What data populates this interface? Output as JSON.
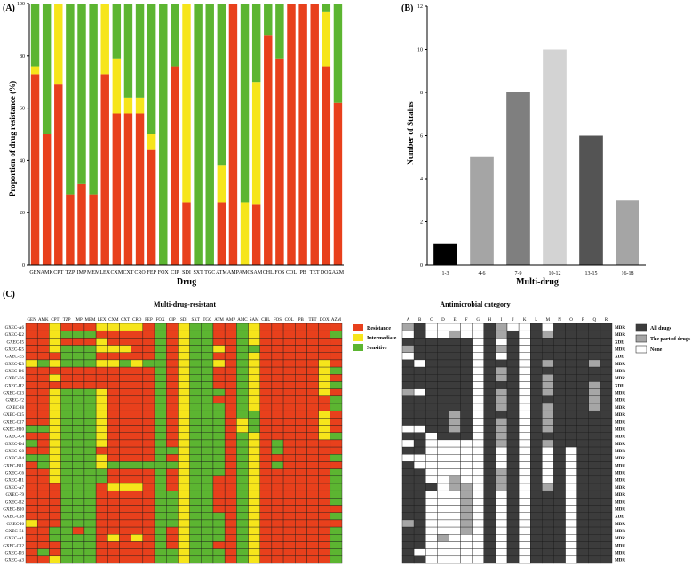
{
  "panel_labels": {
    "a": "(A)",
    "b": "(B)",
    "c": "(C)"
  },
  "drugs": [
    "GEN",
    "AMK",
    "CPT",
    "TZP",
    "IMP",
    "MEM",
    "LEX",
    "CXM",
    "CXT",
    "CRO",
    "FEP",
    "FOX",
    "CIP",
    "SDI",
    "SXT",
    "TGC",
    "ATM",
    "AMP",
    "AMC",
    "SAM",
    "CHL",
    "FOS",
    "COL",
    "PB",
    "TET",
    "DOX",
    "AZM"
  ],
  "colors": {
    "resistance": "#e8401c",
    "intermediate": "#f6e51b",
    "sensitive": "#5cb531",
    "all_drugs": "#3c3c3c",
    "part_drugs": "#a6a6a6",
    "none": "#ffffff"
  },
  "chart_data": [
    {
      "type": "bar",
      "stacked": true,
      "title": "",
      "xlabel": "Drug",
      "ylabel": "Proportion of drug resistance (%)",
      "ylim": [
        0,
        100
      ],
      "yticks": [
        0,
        20,
        40,
        60,
        80,
        100
      ],
      "categories": [
        "GEN",
        "AMK",
        "CPT",
        "TZP",
        "IMP",
        "MEM",
        "LEX",
        "CXM",
        "CXT",
        "CRO",
        "FEP",
        "FOX",
        "CIP",
        "SDI",
        "SXT",
        "TGC",
        "ATM",
        "AMP",
        "AMC",
        "SAM",
        "CHL",
        "FOS",
        "COL",
        "PB",
        "TET",
        "DOX",
        "AZM"
      ],
      "series": [
        {
          "name": "Resistance",
          "values": [
            73,
            50,
            69,
            27,
            31,
            27,
            73,
            58,
            58,
            58,
            44,
            0,
            76,
            24,
            0,
            0,
            24,
            100,
            0,
            23,
            88,
            79,
            100,
            100,
            100,
            76,
            62
          ]
        },
        {
          "name": "Intermediate",
          "values": [
            3,
            0,
            31,
            0,
            0,
            0,
            27,
            21,
            6,
            6,
            6,
            0,
            0,
            76,
            0,
            0,
            14,
            0,
            24,
            47,
            0,
            0,
            0,
            0,
            0,
            21,
            0
          ]
        },
        {
          "name": "Sensitive",
          "values": [
            24,
            50,
            0,
            73,
            69,
            73,
            0,
            21,
            36,
            36,
            50,
            100,
            24,
            0,
            100,
            100,
            62,
            0,
            76,
            30,
            12,
            21,
            0,
            0,
            0,
            3,
            38
          ]
        }
      ]
    },
    {
      "type": "bar",
      "title": "",
      "xlabel": "Multi-drug",
      "ylabel": "Number of Strains",
      "ylim": [
        0,
        12
      ],
      "yticks": [
        0,
        2,
        4,
        6,
        8,
        10,
        12
      ],
      "categories": [
        "1-3",
        "4-6",
        "7-9",
        "10-12",
        "13-15",
        "16-18"
      ],
      "values": [
        1,
        5,
        8,
        10,
        6,
        3
      ],
      "bar_colors": [
        "#000000",
        "#a5a5a5",
        "#7f7f7f",
        "#d3d3d3",
        "#545454",
        "#a5a5a5"
      ]
    },
    {
      "type": "heatmap",
      "title": "Multi-drug-resistant",
      "columns": [
        "GEN",
        "AMK",
        "CPT",
        "TZP",
        "IMP",
        "MEM",
        "LEX",
        "CXM",
        "CXT",
        "CRO",
        "FEP",
        "FOX",
        "CIP",
        "SDI",
        "SXT",
        "TGC",
        "ATM",
        "AMP",
        "AMC",
        "SAM",
        "CHL",
        "FOS",
        "COL",
        "PB",
        "TET",
        "DOX",
        "AZM"
      ],
      "rows": [
        "GXEC-A6",
        "GXEC-K2",
        "GXEC-I5",
        "GXEC-K5",
        "GXEC-E5",
        "GXEC-K3",
        "GXEC-D6",
        "GXEC-E6",
        "GXEC-H2",
        "GXEC-C13",
        "GXEC-F2",
        "GXEC-J8",
        "GXEC-C15",
        "GXEC-C17",
        "GXEC-H10",
        "GXEC-C4",
        "GXEC-D4",
        "GXEC-G8",
        "GXEC-B4",
        "GXEC-B11",
        "GXEC-C6",
        "GXEC-H1",
        "GXEC-A7",
        "GXEC-F9",
        "GXEC-B2",
        "GXEC-B10",
        "GXEC-C18",
        "GXEC-I6",
        "GXEC-E1",
        "GXEC-A1",
        "GXEC-C12",
        "GXEC-D3",
        "GXEC-A3"
      ],
      "legend": [
        "Resistance",
        "Intermediate",
        "Sensitive"
      ],
      "values": [
        "RRYRRRYYYYRGRYGGRRGYRRRRRRR",
        "RRYGGGRRRRRGRYGGRRGYRRRRRRG",
        "RRYRRRYRRRRGRYGGRRGYRRRRRRR",
        "RRYGGGYYYRRGRYGGYRGGRRRRRRR",
        "RRRGGGRRRRRGRYGGRRGYRRRRRRR",
        "YGYGGGYYGYGGRYGGYRGYRRRRRYR",
        "RRRRRRRRRRRGRYGGRRGYRRRRRYG",
        "RRYRRRRRRRRGRYGGRRGYRRRRRYR",
        "RRRRRRRRRRRGRYGGRRGYRRRRRYG",
        "RRYGGGYRRRRGRYGGGRGYRRRRRYR",
        "RRYGGGYRRRRGRYGGRRGYRRRRRRG",
        "RRYGGGYRRRRGRYGGGRGYRRRRRRG",
        "RRYGGGYRRRRGRYGGGRGGRRRRRYR",
        "RRYGGGYRRRRGRYGGGRYGRRRRRYR",
        "GGYGGGYRRRRGRYGGGRYGRRRRRYR",
        "RRYGGGYRRRRGRYGGGRGYRRRRRYG",
        "GRYGGGYRRRRGRYGGGRGYRGRRRRR",
        "RRYGGGRRRRRGGYGGGRGYRGRRRRR",
        "GGYGGGYRRRRGRYGGGRGYRRRRRRG",
        "RGYGGGYGGGGGGYGGGRGYRGRRRRR",
        "RRYGGGGRRRRGRYGGGRGYRRRRRRG",
        "RRYGGGGRRRRGRYGGRRGYRRRRRRG",
        "RRRGGGRYYYRGRYGGRRGYRRRRRRG",
        "RRRGGGRRRRRGGYGGRRGYRRRRRRG",
        "RRRGGGRRRRRGGYGGRRGYRRRRRRG",
        "RRRGGGRRRRRGGYGGRRGYRRRRRRR",
        "RRRGGGRRRRRGGYGGGRGYRRRRRRG",
        "YRRGGGRRRRRGGYGGGRGYRRRRRRR",
        "RRGGRGRRRRRGRYGGGRGYRRRRRRG",
        "RRGGGGRYRYRGRYGGGRGYRRRRRRG",
        "RRRGGGRRRRRGRYGGRRGYRRRRRRG",
        "RGRGGGRRRRRGGYGGGRGYRRRRRRG",
        "RRYGGGRRRRRGGYGGGRGYRRRRRRG"
      ]
    },
    {
      "type": "heatmap",
      "title": "Antimicrobial category",
      "columns": [
        "A",
        "B",
        "C",
        "D",
        "E",
        "F",
        "G",
        "H",
        "I",
        "J",
        "K",
        "L",
        "M",
        "N",
        "O",
        "P",
        "Q",
        "R"
      ],
      "legend": [
        "All drugs",
        "The part of drugs",
        "None"
      ],
      "classification": [
        "MDR",
        "MDR",
        "XDR",
        "MDR",
        "XDR",
        "MDR",
        "MDR",
        "MDR",
        "XDR",
        "MDR",
        "MDR",
        "MDR",
        "MDR",
        "MDR",
        "MDR",
        "MDR",
        "MDR",
        "MDR",
        "MDR",
        "MDR",
        "MDR",
        "MDR",
        "MDR",
        "MDR",
        "MDR",
        "MDR",
        "XDR",
        "MDR",
        "MDR",
        "MDR",
        "MDR",
        "MDR",
        "MDR"
      ],
      "values": [
        "PAWWWWWAPWWAWAAAAA",
        "WAWWPWWAPAWAPAAAAA",
        "AAAAAAWAWAWAAAAAAA",
        "PAAAAAWAPAWAAAAAAA",
        "WAAAAAWAWAWAAAAAAA",
        "AWAAAAWAAAWAPAAAPA",
        "AAAAAAWAPAWAAAAAAA",
        "AAAAAAWAPAWAPAAAAA",
        "AAAAAAWAAAWAPAAAPA",
        "PWAAAAWAPAWAPAAAPA",
        "AAAAAAWAPAWAAAAAPA",
        "AAAAAAWAPAWAPAAAPA",
        "AAAAPAWAAAWAPAAAAA",
        "AAAAPAWAPAWAPAAAAA",
        "WWAAPAWAPAWAPAAAAA",
        "AAWAAAWAPAWAAAAAAA",
        "WAWWWWWAPAWAPAAAAA",
        "AAWWWWWAWAWAWAWAAA",
        "WWWWWWWAWAWAWAWAAA",
        "AWWWWWWAWAWAWAWAAA",
        "AAWWWWWAPAWAWAWAAA",
        "AAWWPWWAPAWAWAWAAA",
        "AAAWPPWAPAWAPAWAAA",
        "AAWWWPWAWAWAAAWAAA",
        "AAWWWPWAWAWAAAWAAA",
        "AAWWWPWAWAWAAAWAAA",
        "AAWWWPWAWAWAAAWAAA",
        "PAWWWPWAWAWAAAWAAA",
        "AAWWWPWAWAWAAAWAAA",
        "AAWPWWWAWAWAAAWAAA",
        "AAWWWWWAWAWAAAWAAA",
        "AWWWWWWAWAWAAAWAAA",
        "AAWWWWWAWAWAAAWAAA"
      ]
    }
  ]
}
